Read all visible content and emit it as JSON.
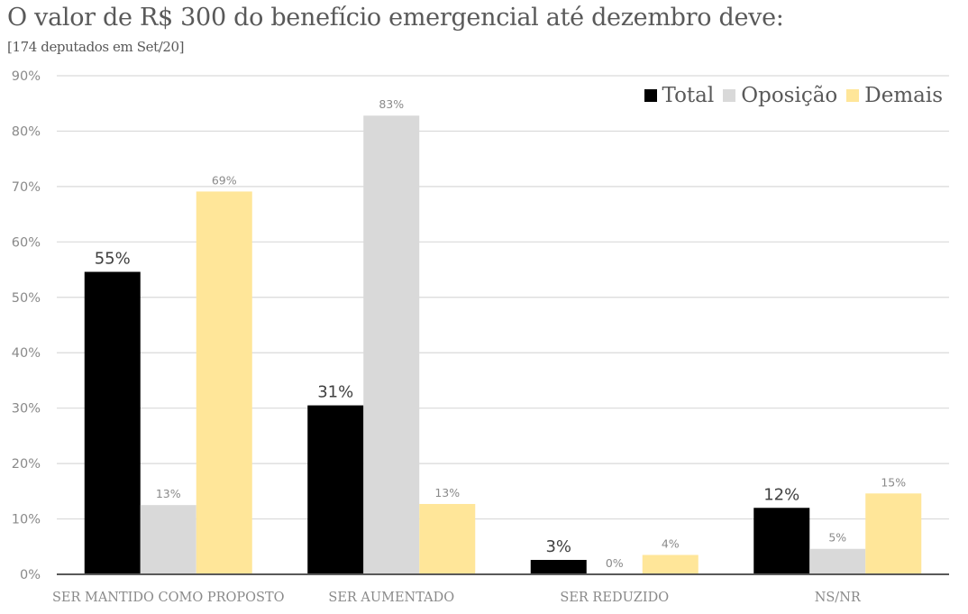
{
  "chart_data": {
    "type": "bar",
    "title": "O valor de R$ 300 do benefício emergencial até dezembro deve:",
    "subtitle": "[174 deputados em Set/20]",
    "xlabel": "",
    "ylabel": "",
    "ylim": [
      0,
      90
    ],
    "yticks": [
      0,
      10,
      20,
      30,
      40,
      50,
      60,
      70,
      80,
      90
    ],
    "ytick_labels": [
      "0%",
      "10%",
      "20%",
      "30%",
      "40%",
      "50%",
      "60%",
      "70%",
      "80%",
      "90%"
    ],
    "grid": true,
    "legend_position": "top-right",
    "categories": [
      "SER MANTIDO COMO PROPOSTO",
      "SER AUMENTADO",
      "SER REDUZIDO",
      "NS/NR"
    ],
    "series": [
      {
        "name": "Total",
        "color": "#000000",
        "values": [
          54.6,
          30.5,
          2.6,
          12.0
        ],
        "labels": [
          "55%",
          "31%",
          "3%",
          "12%"
        ],
        "label_style": "big"
      },
      {
        "name": "Oposição",
        "color": "#d9d9d9",
        "values": [
          12.5,
          82.8,
          0,
          4.6
        ],
        "labels": [
          "13%",
          "83%",
          "0%",
          "5%"
        ],
        "label_style": "small"
      },
      {
        "name": "Demais",
        "color": "#ffe699",
        "values": [
          69.1,
          12.7,
          3.5,
          14.6
        ],
        "labels": [
          "69%",
          "13%",
          "4%",
          "15%"
        ],
        "label_style": "small"
      }
    ]
  }
}
